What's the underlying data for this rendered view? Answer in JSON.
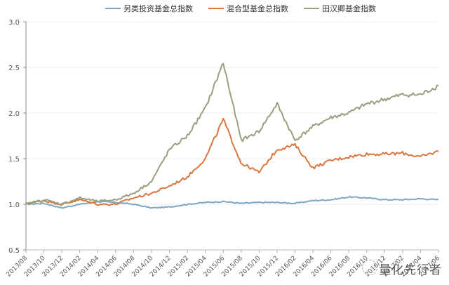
{
  "chart_data": {
    "type": "line",
    "title": "",
    "xlabel": "",
    "ylabel": "",
    "ylim": [
      0.5,
      3.0
    ],
    "yticks": [
      "0.5",
      "1.0",
      "1.5",
      "2.0",
      "2.5",
      "3.0"
    ],
    "grid": true,
    "legend_position": "top",
    "x_tick_labels": [
      "2013/08",
      "2013/10",
      "2013/12",
      "2014/02",
      "2014/04",
      "2014/06",
      "2014/08",
      "2014/10",
      "2014/12",
      "2015/02",
      "2015/04",
      "2015/06",
      "2015/08",
      "2015/10",
      "2015/12",
      "2016/02",
      "2016/04",
      "2016/06",
      "2016/08",
      "2016/10",
      "2016/12",
      "2017/02",
      "2017/04",
      "2017/06"
    ],
    "x": [
      "2013/08",
      "2013/10",
      "2013/12",
      "2014/02",
      "2014/04",
      "2014/06",
      "2014/08",
      "2014/10",
      "2014/12",
      "2015/02",
      "2015/04",
      "2015/06",
      "2015/08",
      "2015/10",
      "2015/12",
      "2016/02",
      "2016/04",
      "2016/06",
      "2016/08",
      "2016/10",
      "2016/12",
      "2017/02",
      "2017/04",
      "2017/06"
    ],
    "series": [
      {
        "name": "另类投资基金总指数",
        "color": "#7fa7c4",
        "values": [
          1.0,
          1.01,
          0.96,
          1.0,
          1.03,
          1.02,
          1.0,
          0.96,
          0.97,
          1.0,
          1.02,
          1.03,
          1.01,
          1.02,
          1.02,
          1.01,
          1.04,
          1.05,
          1.08,
          1.07,
          1.05,
          1.05,
          1.06,
          1.05
        ]
      },
      {
        "name": "混合型基金总指数",
        "color": "#d9773f",
        "values": [
          1.01,
          1.04,
          1.0,
          1.05,
          1.0,
          1.0,
          1.07,
          1.12,
          1.2,
          1.3,
          1.5,
          1.93,
          1.45,
          1.35,
          1.6,
          1.65,
          1.4,
          1.48,
          1.52,
          1.55,
          1.55,
          1.56,
          1.52,
          1.58
        ]
      },
      {
        "name": "田汉卿基金指数",
        "color": "#98a07e",
        "values": [
          1.0,
          1.05,
          1.0,
          1.07,
          1.03,
          1.05,
          1.12,
          1.25,
          1.6,
          1.75,
          2.05,
          2.55,
          1.7,
          1.8,
          2.1,
          1.7,
          1.85,
          1.95,
          2.0,
          2.1,
          2.15,
          2.2,
          2.2,
          2.3
        ]
      }
    ]
  },
  "legend": {
    "items": [
      {
        "label": "另类投资基金总指数",
        "color": "#7fa7c4"
      },
      {
        "label": "混合型基金总指数",
        "color": "#d9773f"
      },
      {
        "label": "田汉卿基金指数",
        "color": "#98a07e"
      }
    ]
  },
  "watermark": {
    "text": "量化先行者"
  }
}
